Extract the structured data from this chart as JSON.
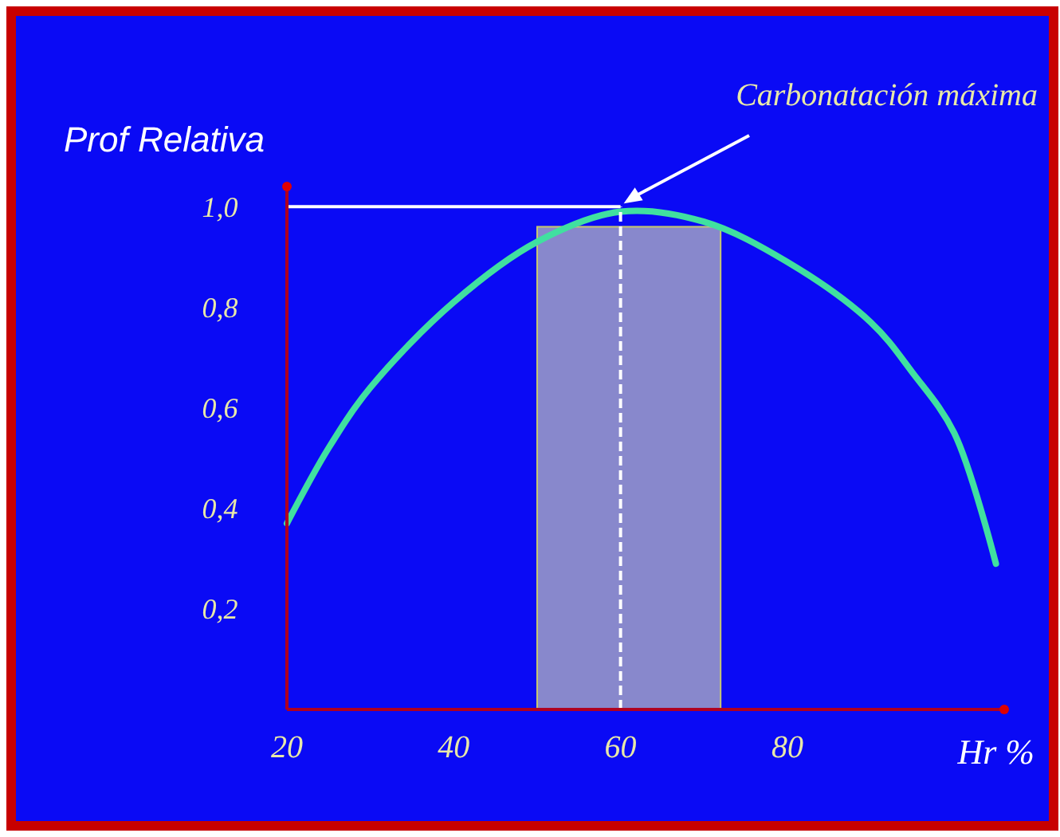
{
  "chart_data": {
    "type": "line",
    "xlabel": "Hr %",
    "ylabel": "Prof Relativa",
    "x": [
      20,
      25,
      30,
      40,
      50,
      60,
      70,
      80,
      90,
      95,
      100,
      105
    ],
    "series": [
      {
        "color": "#40e0a0",
        "values": [
          0.37,
          0.52,
          0.64,
          0.81,
          0.93,
          0.99,
          0.97,
          0.89,
          0.77,
          0.67,
          0.55,
          0.29
        ]
      }
    ],
    "xlim": [
      20,
      106
    ],
    "ylim": [
      0,
      1.04
    ],
    "xticks": [
      20,
      40,
      60,
      80
    ],
    "yticks": [
      {
        "value": 0.2,
        "label": "0,2"
      },
      {
        "value": 0.4,
        "label": "0,4"
      },
      {
        "value": 0.6,
        "label": "0,6"
      },
      {
        "value": 0.8,
        "label": "0,8"
      },
      {
        "value": 1.0,
        "label": "1,0"
      }
    ],
    "ref_lines": [
      {
        "axis": "y",
        "value": 1.0,
        "color": "#ffffff",
        "line_style": "solid"
      },
      {
        "axis": "x",
        "value": 60,
        "color": "#ffffff",
        "line_style": "dashed"
      }
    ],
    "bands": [
      {
        "axis": "x",
        "from": 50,
        "to": 72,
        "color": "#8888cc"
      }
    ],
    "annotations": [
      "Carbonatación máxima"
    ],
    "grid": false,
    "marker": "none",
    "line_style": "solid"
  }
}
